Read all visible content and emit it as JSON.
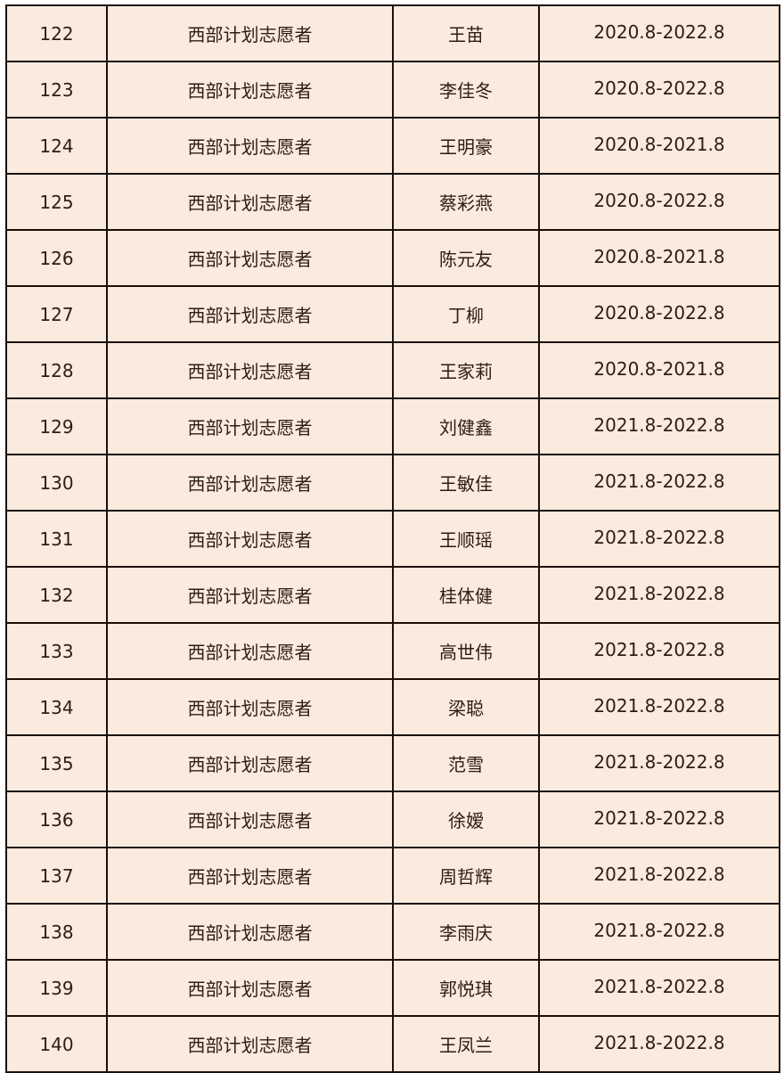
{
  "colors": {
    "cell_background": "#fbeade",
    "border": "#1a1008",
    "text": "#2a1e16"
  },
  "rows": [
    {
      "no": "122",
      "type": "西部计划志愿者",
      "name": "王苗",
      "period": "2020.8-2022.8"
    },
    {
      "no": "123",
      "type": "西部计划志愿者",
      "name": "李佳冬",
      "period": "2020.8-2022.8"
    },
    {
      "no": "124",
      "type": "西部计划志愿者",
      "name": "王明豪",
      "period": "2020.8-2021.8"
    },
    {
      "no": "125",
      "type": "西部计划志愿者",
      "name": "蔡彩燕",
      "period": "2020.8-2022.8"
    },
    {
      "no": "126",
      "type": "西部计划志愿者",
      "name": "陈元友",
      "period": "2020.8-2021.8"
    },
    {
      "no": "127",
      "type": "西部计划志愿者",
      "name": "丁柳",
      "period": "2020.8-2022.8"
    },
    {
      "no": "128",
      "type": "西部计划志愿者",
      "name": "王家莉",
      "period": "2020.8-2021.8"
    },
    {
      "no": "129",
      "type": "西部计划志愿者",
      "name": "刘健鑫",
      "period": "2021.8-2022.8"
    },
    {
      "no": "130",
      "type": "西部计划志愿者",
      "name": "王敏佳",
      "period": "2021.8-2022.8"
    },
    {
      "no": "131",
      "type": "西部计划志愿者",
      "name": "王顺瑶",
      "period": "2021.8-2022.8"
    },
    {
      "no": "132",
      "type": "西部计划志愿者",
      "name": "桂体健",
      "period": "2021.8-2022.8"
    },
    {
      "no": "133",
      "type": "西部计划志愿者",
      "name": "高世伟",
      "period": "2021.8-2022.8"
    },
    {
      "no": "134",
      "type": "西部计划志愿者",
      "name": "梁聪",
      "period": "2021.8-2022.8"
    },
    {
      "no": "135",
      "type": "西部计划志愿者",
      "name": "范雪",
      "period": "2021.8-2022.8"
    },
    {
      "no": "136",
      "type": "西部计划志愿者",
      "name": "徐嫒",
      "period": "2021.8-2022.8"
    },
    {
      "no": "137",
      "type": "西部计划志愿者",
      "name": "周哲辉",
      "period": "2021.8-2022.8"
    },
    {
      "no": "138",
      "type": "西部计划志愿者",
      "name": "李雨庆",
      "period": "2021.8-2022.8"
    },
    {
      "no": "139",
      "type": "西部计划志愿者",
      "name": "郭悦琪",
      "period": "2021.8-2022.8"
    },
    {
      "no": "140",
      "type": "西部计划志愿者",
      "name": "王凤兰",
      "period": "2021.8-2022.8"
    }
  ]
}
